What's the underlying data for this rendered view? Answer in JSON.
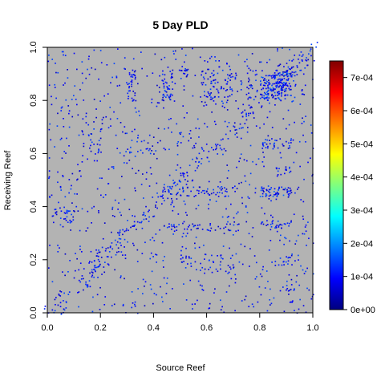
{
  "chart_data": {
    "type": "heatmap",
    "title": "5 Day PLD",
    "xlabel": "Source Reef",
    "ylabel": "Receiving Reef",
    "xlim": [
      0,
      1
    ],
    "ylim": [
      0,
      1
    ],
    "x_ticks": [
      "0.0",
      "0.2",
      "0.4",
      "0.6",
      "0.8",
      "1.0"
    ],
    "y_ticks": [
      "0.0",
      "0.2",
      "0.4",
      "0.6",
      "0.8",
      "1.0"
    ],
    "background_color": "#b3b3b3",
    "colorbar": {
      "min": 0,
      "max": 0.00075,
      "tick_values": [
        0,
        0.0001,
        0.0002,
        0.0003,
        0.0004,
        0.0005,
        0.0006,
        0.0007
      ],
      "tick_labels": [
        "0e+00",
        "1e-04",
        "2e-04",
        "3e-04",
        "4e-04",
        "5e-04",
        "6e-04",
        "7e-04"
      ],
      "palette": [
        "#00007f",
        "#0000ff",
        "#007fff",
        "#00ffff",
        "#7fff7f",
        "#ffff00",
        "#ff7f00",
        "#ff0000",
        "#7f0000"
      ]
    },
    "clusters": [
      {
        "x": [
          0.8,
          0.9
        ],
        "y": [
          0.8,
          0.9
        ],
        "density": 0.6
      },
      {
        "x": [
          0.86,
          0.92
        ],
        "y": [
          0.82,
          0.92
        ],
        "density": 0.55
      },
      {
        "x": [
          0.8,
          0.92
        ],
        "y": [
          0.44,
          0.48
        ],
        "density": 0.55
      },
      {
        "x": [
          0.8,
          0.92
        ],
        "y": [
          0.32,
          0.35
        ],
        "density": 0.4
      },
      {
        "x": [
          0.86,
          0.92
        ],
        "y": [
          0.52,
          0.55
        ],
        "density": 0.4
      },
      {
        "x": [
          0.8,
          0.92
        ],
        "y": [
          0.62,
          0.66
        ],
        "density": 0.3
      },
      {
        "x": [
          0.3,
          0.33
        ],
        "y": [
          0.8,
          0.92
        ],
        "density": 0.45
      },
      {
        "x": [
          0.43,
          0.47
        ],
        "y": [
          0.8,
          0.92
        ],
        "density": 0.45
      },
      {
        "x": [
          0.5,
          0.53
        ],
        "y": [
          0.88,
          0.93
        ],
        "density": 0.45
      },
      {
        "x": [
          0.58,
          0.71
        ],
        "y": [
          0.8,
          0.92
        ],
        "density": 0.25
      },
      {
        "x": [
          0.75,
          0.79
        ],
        "y": [
          0.8,
          0.92
        ],
        "density": 0.25
      },
      {
        "x": [
          0.5,
          0.53
        ],
        "y": [
          0.5,
          0.53
        ],
        "density": 0.4
      },
      {
        "x": [
          0.43,
          0.72
        ],
        "y": [
          0.44,
          0.48
        ],
        "density": 0.25
      },
      {
        "x": [
          0.43,
          0.72
        ],
        "y": [
          0.31,
          0.34
        ],
        "density": 0.25
      },
      {
        "x": [
          0.02,
          0.1
        ],
        "y": [
          0.34,
          0.4
        ],
        "density": 0.3
      },
      {
        "x": [
          0.15,
          0.2
        ],
        "y": [
          0.6,
          0.7
        ],
        "density": 0.2
      },
      {
        "x": [
          0.15,
          0.2
        ],
        "y": [
          0.15,
          0.22
        ],
        "density": 0.2
      },
      {
        "x": [
          0.5,
          0.55
        ],
        "y": [
          0.17,
          0.22
        ],
        "density": 0.25
      },
      {
        "x": [
          0.88,
          0.92
        ],
        "y": [
          0.18,
          0.22
        ],
        "density": 0.35
      },
      {
        "x": [
          0.88,
          0.93
        ],
        "y": [
          0.07,
          0.1
        ],
        "density": 0.3
      },
      {
        "x": [
          0.3,
          0.4
        ],
        "y": [
          0.6,
          0.66
        ],
        "density": 0.15
      },
      {
        "x": [
          0.6,
          0.7
        ],
        "y": [
          0.15,
          0.22
        ],
        "density": 0.15
      }
    ]
  }
}
